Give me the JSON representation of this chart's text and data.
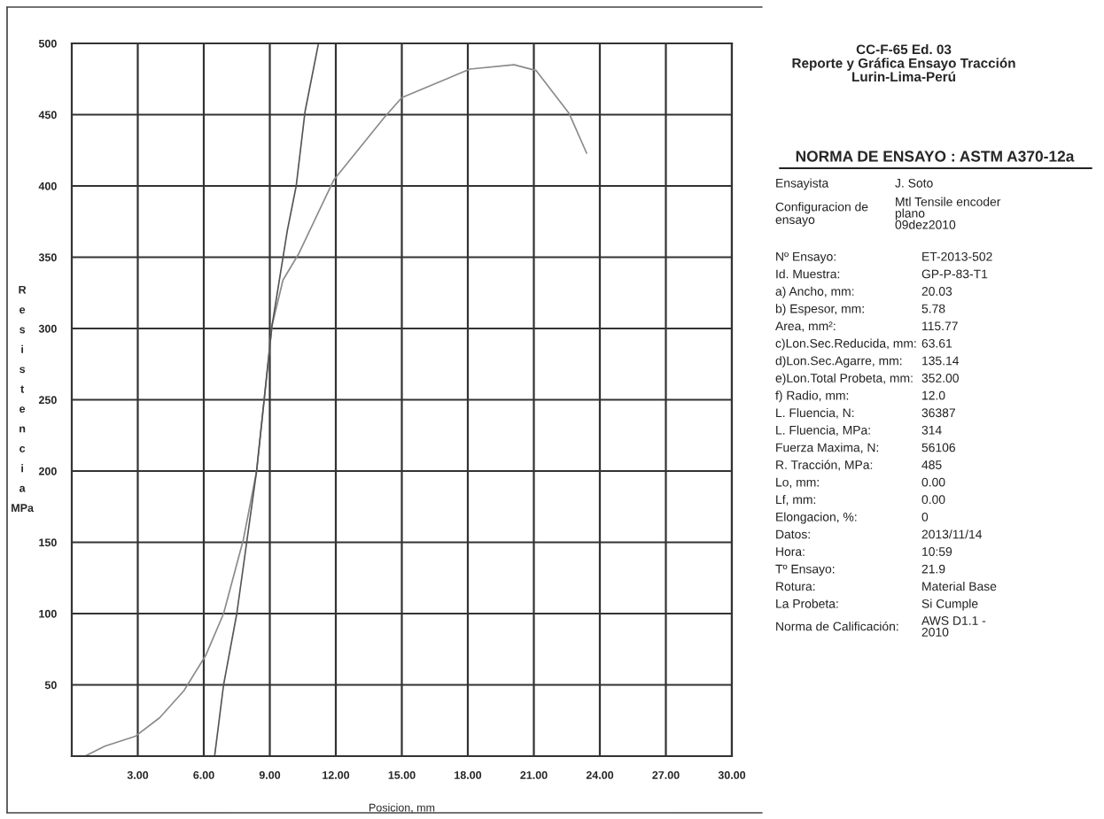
{
  "chart_data": [
    {
      "type": "line",
      "xlabel": "Posicion, mm",
      "ylabel": "Resistencia MPa",
      "xlim": [
        0,
        30
      ],
      "ylim": [
        0,
        500
      ],
      "xticks": [
        {
          "value": 3,
          "label": "3.00"
        },
        {
          "value": 6,
          "label": "6.00"
        },
        {
          "value": 9,
          "label": "9.00"
        },
        {
          "value": 12,
          "label": "12.00"
        },
        {
          "value": 15,
          "label": "15.00"
        },
        {
          "value": 18,
          "label": "18.00"
        },
        {
          "value": 21,
          "label": "21.00"
        },
        {
          "value": 24,
          "label": "24.00"
        },
        {
          "value": 27,
          "label": "27.00"
        },
        {
          "value": 30,
          "label": "30.00"
        }
      ],
      "yticks": [
        50,
        100,
        150,
        200,
        250,
        300,
        350,
        400,
        450,
        500
      ],
      "grid": true,
      "series": [
        {
          "color": "#8a8a8a",
          "x": [
            0.6,
            1.5,
            2.9,
            4.0,
            5.1,
            6.1,
            6.9,
            7.8,
            8.4,
            9.1,
            9.6,
            10.3,
            11.9,
            14.2,
            15.0,
            18.1,
            20.1,
            21.1,
            22.6,
            23.4
          ],
          "values": [
            0,
            7,
            14,
            27,
            46,
            71,
            100,
            152,
            200,
            302,
            334,
            352,
            404,
            448,
            462,
            482,
            485,
            481,
            451,
            423
          ]
        },
        {
          "color": "#555555",
          "x": [
            6.5,
            6.9,
            7.5,
            8.4,
            9.1,
            9.8,
            10.2,
            10.6,
            11.2
          ],
          "values": [
            1,
            50,
            100,
            200,
            302,
            369,
            400,
            452,
            499
          ]
        }
      ]
    },
    {
      "type": "other",
      "title": "CC-F-65 Ed. 03\nReporte y Gráfica Ensayo Tracción\nLurin-Lima-Perú",
      "subtitle": "NORMA DE ENSAYO : ASTM A370-12a",
      "annotations": [
        "Ensayista",
        "J. Soto",
        "Configuracion de\nensayo",
        "Mtl Tensile encoder\nplano\n09dez2010",
        "Nº Ensayo:",
        "ET-2013-502",
        "Id. Muestra:",
        "GP-P-83-T1",
        "a) Ancho, mm:",
        "20.03",
        "b) Espesor, mm:",
        "5.78",
        "Area, mm²:",
        "115.77",
        "c)Lon.Sec.Reducida, mm:",
        "63.61",
        "d)Lon.Sec.Agarre, mm:",
        "135.14",
        "e)Lon.Total Probeta, mm:",
        "352.00",
        "f) Radio, mm:",
        "12.0",
        "L. Fluencia, N:",
        "36387",
        "L. Fluencia, MPa:",
        "314",
        "Fuerza Maxima, N:",
        "56106",
        "R. Tracción, MPa:",
        "485",
        "Lo, mm:",
        "0.00",
        "Lf, mm:",
        "0.00",
        "Elongacion, %:",
        "0",
        "Datos:",
        "2013/11/14",
        "Hora:",
        "10:59",
        "Tº Ensayo:",
        "21.9",
        "Rotura:",
        "Material Base",
        "La Probeta:",
        "Si Cumple",
        "Norma de Calificación:",
        "AWS D1.1 -\n2010"
      ]
    }
  ]
}
